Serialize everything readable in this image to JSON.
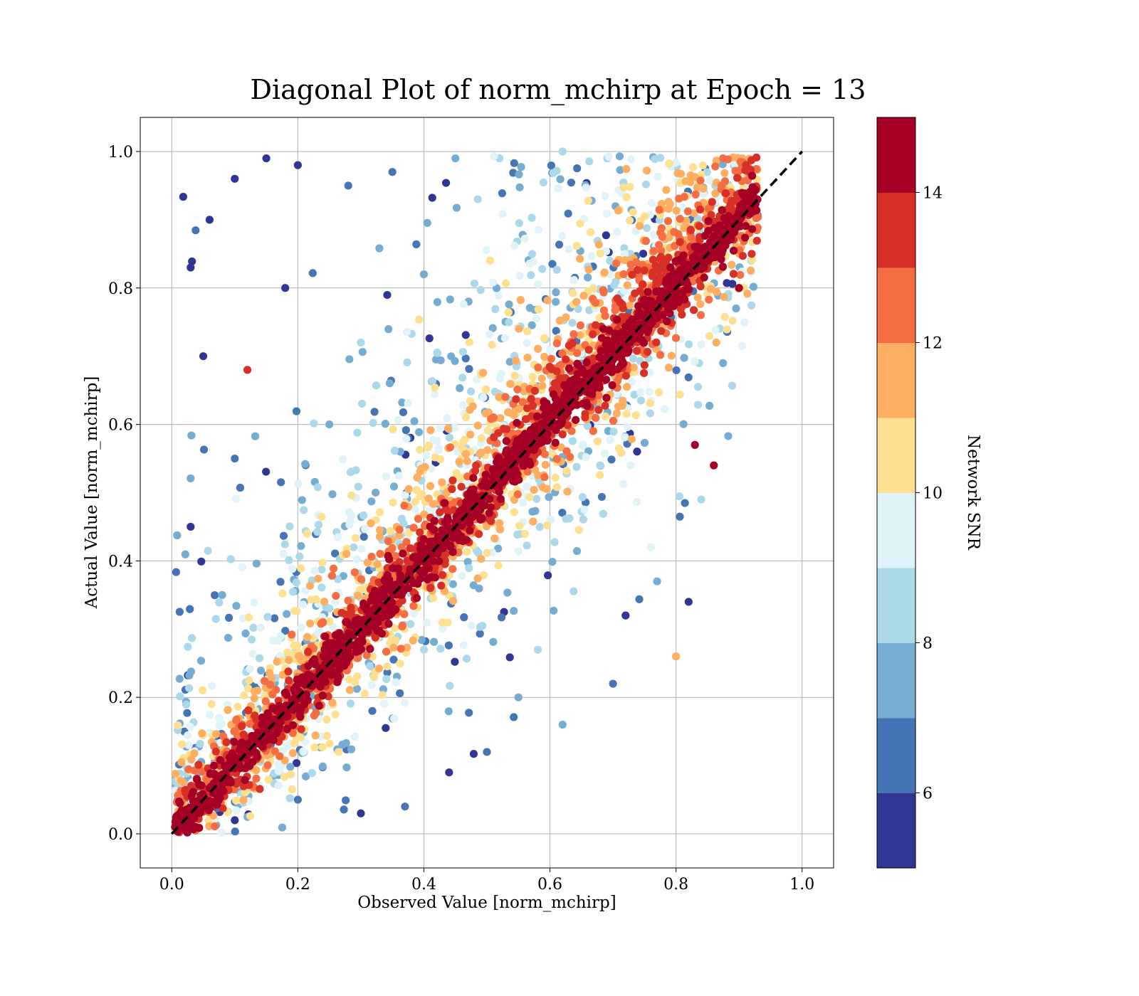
{
  "chart_data": {
    "type": "scatter",
    "title": "Diagonal Plot of norm_mchirp at Epoch = 13",
    "xlabel": "Observed Value [norm_mchirp]",
    "ylabel": "Actual Value [norm_mchirp]",
    "xlim": [
      -0.05,
      1.05
    ],
    "ylim": [
      -0.05,
      1.05
    ],
    "xticks": [
      0.0,
      0.2,
      0.4,
      0.6,
      0.8,
      1.0
    ],
    "xtick_labels": [
      "0.0",
      "0.2",
      "0.4",
      "0.6",
      "0.8",
      "1.0"
    ],
    "yticks": [
      0.0,
      0.2,
      0.4,
      0.6,
      0.8,
      1.0
    ],
    "ytick_labels": [
      "0.0",
      "0.2",
      "0.4",
      "0.6",
      "0.8",
      "1.0"
    ],
    "grid": true,
    "reference_line": {
      "style": "dashed",
      "color": "#000000",
      "x": [
        0.0,
        1.0
      ],
      "y": [
        0.0,
        1.0
      ]
    },
    "colorbar": {
      "label": "Network SNR",
      "range": [
        5,
        15
      ],
      "ticks": [
        6,
        8,
        10,
        12,
        14
      ],
      "tick_labels": [
        "6",
        "8",
        "10",
        "12",
        "14"
      ],
      "colors": [
        "#313695",
        "#4575b4",
        "#74add1",
        "#abd9e9",
        "#e0f3f8",
        "#fee090",
        "#fdae61",
        "#f46d43",
        "#d73027",
        "#a50026"
      ]
    },
    "series": [
      {
        "description": "representative sample of points (x = observed, y = actual, snr = colour)",
        "points": [
          [
            0.03,
            0.83,
            5.2
          ],
          [
            0.06,
            0.9,
            5.6
          ],
          [
            0.1,
            0.96,
            5.1
          ],
          [
            0.15,
            0.99,
            5.4
          ],
          [
            0.2,
            0.98,
            5.3
          ],
          [
            0.28,
            0.95,
            6.2
          ],
          [
            0.35,
            0.97,
            6.8
          ],
          [
            0.45,
            0.99,
            7.5
          ],
          [
            0.52,
            0.99,
            8.9
          ],
          [
            0.62,
            1.0,
            8.1
          ],
          [
            0.05,
            0.7,
            5.8
          ],
          [
            0.1,
            0.55,
            6.9
          ],
          [
            0.03,
            0.45,
            5.5
          ],
          [
            0.08,
            0.35,
            7.2
          ],
          [
            0.12,
            0.68,
            13.6
          ],
          [
            0.18,
            0.8,
            5.0
          ],
          [
            0.25,
            0.6,
            7.7
          ],
          [
            0.3,
            0.72,
            8.4
          ],
          [
            0.4,
            0.82,
            7.1
          ],
          [
            0.02,
            0.15,
            6.1
          ],
          [
            0.05,
            0.05,
            9.3
          ],
          [
            0.1,
            0.02,
            5.7
          ],
          [
            0.2,
            0.05,
            6.3
          ],
          [
            0.3,
            0.03,
            5.9
          ],
          [
            0.37,
            0.04,
            6.6
          ],
          [
            0.44,
            0.09,
            5.2
          ],
          [
            0.5,
            0.12,
            6.0
          ],
          [
            0.55,
            0.2,
            7.0
          ],
          [
            0.62,
            0.16,
            7.8
          ],
          [
            0.7,
            0.22,
            6.4
          ],
          [
            0.72,
            0.32,
            5.5
          ],
          [
            0.77,
            0.37,
            7.9
          ],
          [
            0.82,
            0.34,
            5.3
          ],
          [
            0.86,
            0.54,
            14.5
          ],
          [
            0.9,
            0.8,
            14.2
          ],
          [
            0.92,
            0.85,
            13.0
          ],
          [
            0.8,
            0.26,
            11.5
          ],
          [
            0.84,
            0.49,
            8.3
          ],
          [
            0.83,
            0.57,
            14.8
          ],
          [
            0.76,
            0.42,
            9.8
          ]
        ]
      }
    ]
  }
}
